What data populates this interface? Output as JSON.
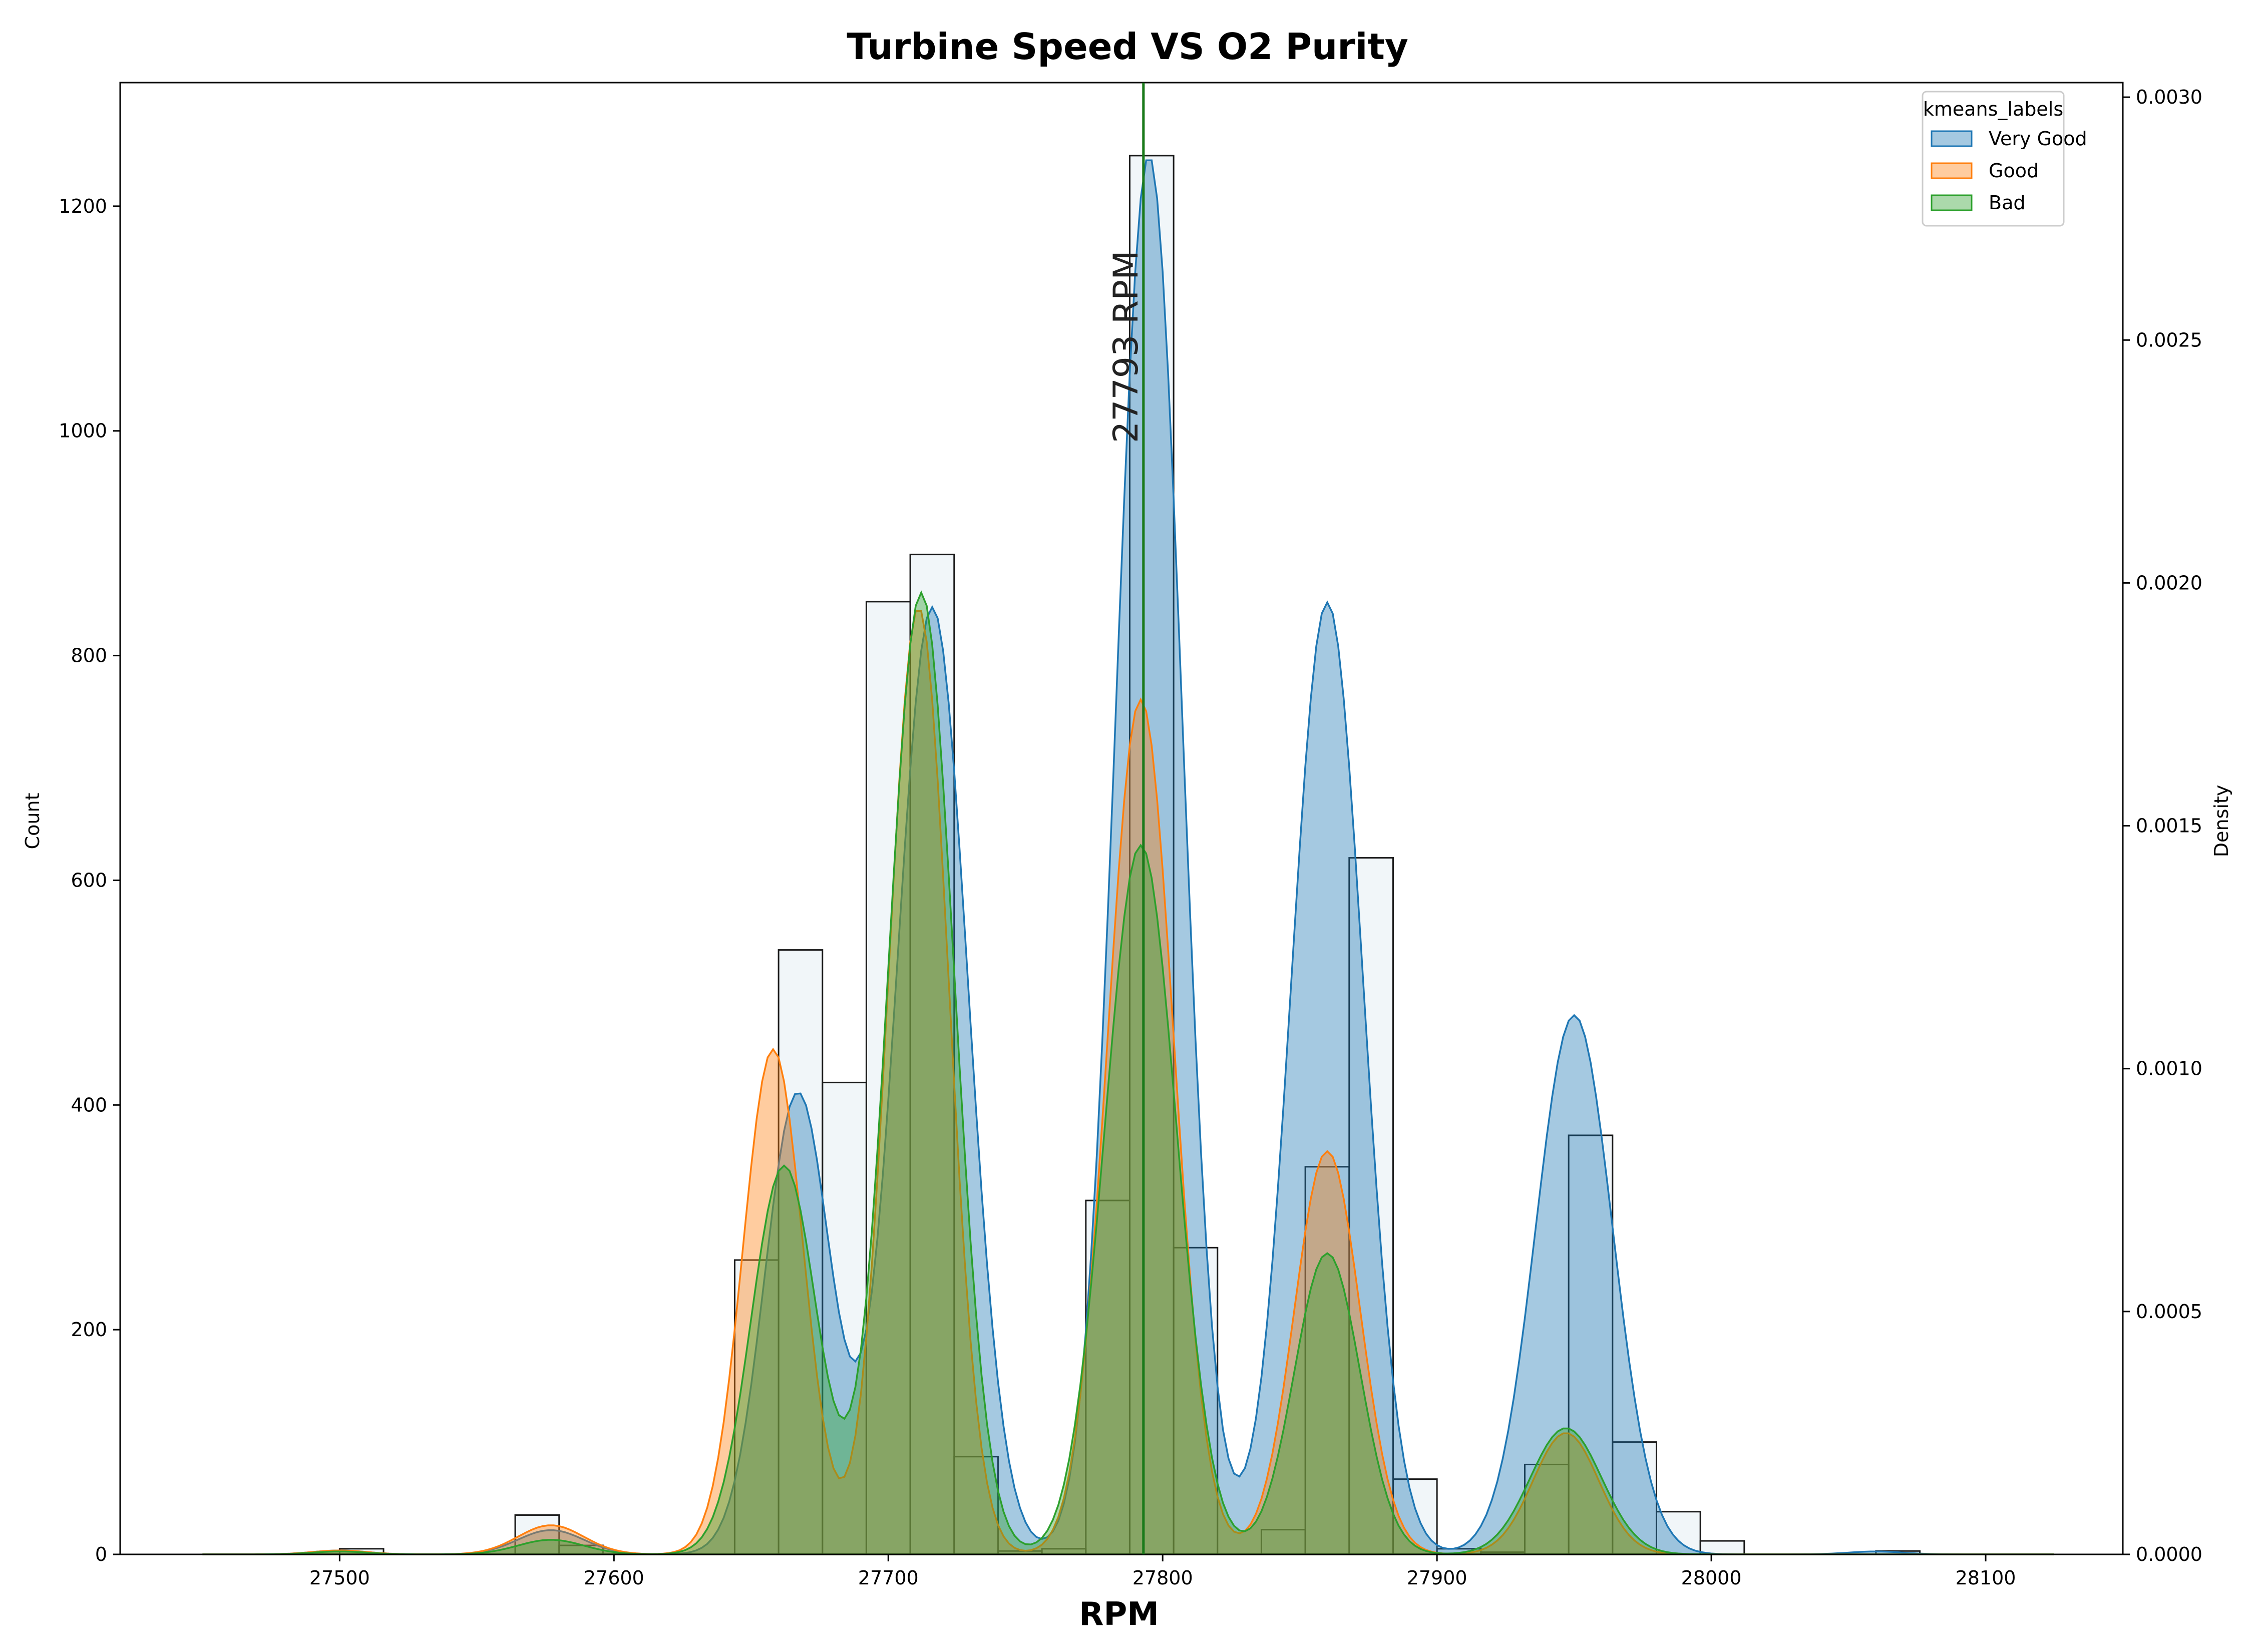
{
  "chart_data": {
    "type": "histogram+kde",
    "title": "Turbine Speed VS O2 Purity",
    "xlabel": "RPM",
    "ylabel_left": "Count",
    "ylabel_right": "Density",
    "xlim": [
      27420,
      28150
    ],
    "ylim_left": [
      0,
      1310
    ],
    "ylim_right": [
      0,
      0.00303
    ],
    "x_ticks": [
      27500,
      27600,
      27700,
      27800,
      27900,
      28000,
      28100
    ],
    "y_left_ticks": [
      0,
      200,
      400,
      600,
      800,
      1000,
      1200
    ],
    "y_right_ticks": [
      "0.0000",
      "0.0005",
      "0.0010",
      "0.0015",
      "0.0020",
      "0.0025",
      "0.0030"
    ],
    "grid": false,
    "legend": {
      "title": "kmeans_labels",
      "placement": "top-right",
      "entries": [
        {
          "label": "Very Good",
          "color": "#1f77b4"
        },
        {
          "label": "Good",
          "color": "#ff7f0e"
        },
        {
          "label": "Bad",
          "color": "#2ca02c"
        }
      ]
    },
    "vline": {
      "x": 27793,
      "color": "#1a7a1a",
      "label": "27793 RPM"
    },
    "histogram": {
      "bin_width": 16,
      "bins": [
        {
          "x": 27500,
          "count": 5
        },
        {
          "x": 27564,
          "count": 35
        },
        {
          "x": 27580,
          "count": 8
        },
        {
          "x": 27644,
          "count": 262
        },
        {
          "x": 27660,
          "count": 538
        },
        {
          "x": 27676,
          "count": 420
        },
        {
          "x": 27692,
          "count": 848
        },
        {
          "x": 27708,
          "count": 890
        },
        {
          "x": 27724,
          "count": 87
        },
        {
          "x": 27740,
          "count": 3
        },
        {
          "x": 27756,
          "count": 5
        },
        {
          "x": 27772,
          "count": 315
        },
        {
          "x": 27788,
          "count": 1245
        },
        {
          "x": 27804,
          "count": 273
        },
        {
          "x": 27836,
          "count": 22
        },
        {
          "x": 27852,
          "count": 345
        },
        {
          "x": 27868,
          "count": 620
        },
        {
          "x": 27884,
          "count": 67
        },
        {
          "x": 27900,
          "count": 5
        },
        {
          "x": 27916,
          "count": 2
        },
        {
          "x": 27932,
          "count": 80
        },
        {
          "x": 27948,
          "count": 373
        },
        {
          "x": 27964,
          "count": 100
        },
        {
          "x": 27980,
          "count": 38
        },
        {
          "x": 27996,
          "count": 12
        },
        {
          "x": 28060,
          "count": 3
        }
      ]
    },
    "series": [
      {
        "name": "Very Good",
        "color": "#1f77b4",
        "peaks": [
          {
            "mu": 27500,
            "sigma": 10,
            "amp": 8e-06
          },
          {
            "mu": 27577,
            "sigma": 12,
            "amp": 5e-05
          },
          {
            "mu": 27667,
            "sigma": 12,
            "amp": 0.00095
          },
          {
            "mu": 27716,
            "sigma": 13,
            "amp": 0.00195
          },
          {
            "mu": 27795,
            "sigma": 12,
            "amp": 0.00288
          },
          {
            "mu": 27860,
            "sigma": 13,
            "amp": 0.00196
          },
          {
            "mu": 27950,
            "sigma": 14,
            "amp": 0.00111
          },
          {
            "mu": 28060,
            "sigma": 10,
            "amp": 6e-06
          }
        ]
      },
      {
        "name": "Good",
        "color": "#ff7f0e",
        "peaks": [
          {
            "mu": 27500,
            "sigma": 10,
            "amp": 8e-06
          },
          {
            "mu": 27577,
            "sigma": 12,
            "amp": 6e-05
          },
          {
            "mu": 27658,
            "sigma": 11,
            "amp": 0.00104
          },
          {
            "mu": 27711,
            "sigma": 11,
            "amp": 0.00195
          },
          {
            "mu": 27792,
            "sigma": 12,
            "amp": 0.00176
          },
          {
            "mu": 27860,
            "sigma": 12,
            "amp": 0.00083
          },
          {
            "mu": 27947,
            "sigma": 12,
            "amp": 0.00025
          }
        ]
      },
      {
        "name": "Bad",
        "color": "#2ca02c",
        "peaks": [
          {
            "mu": 27500,
            "sigma": 10,
            "amp": 6e-06
          },
          {
            "mu": 27577,
            "sigma": 12,
            "amp": 3e-05
          },
          {
            "mu": 27662,
            "sigma": 12,
            "amp": 0.0008
          },
          {
            "mu": 27712,
            "sigma": 12,
            "amp": 0.00198
          },
          {
            "mu": 27792,
            "sigma": 13,
            "amp": 0.00146
          },
          {
            "mu": 27860,
            "sigma": 12,
            "amp": 0.00062
          },
          {
            "mu": 27947,
            "sigma": 13,
            "amp": 0.00026
          }
        ]
      }
    ]
  }
}
